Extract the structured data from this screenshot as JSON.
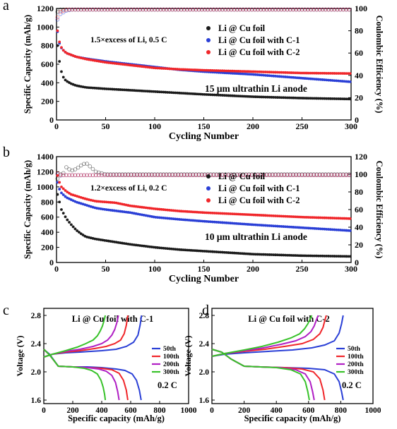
{
  "chart_data": [
    {
      "panel": "a",
      "type": "scatter",
      "xlabel": "Cycling Number",
      "ylabel": "Specific Capacity (mAh/g)",
      "y2label": "Coulombic Efficiency (%)",
      "xlim": [
        0,
        300
      ],
      "ylim": [
        0,
        1200
      ],
      "y2lim": [
        0,
        100
      ],
      "xticks": [
        "0",
        "50",
        "100",
        "150",
        "200",
        "250",
        "300"
      ],
      "yticks": [
        "0",
        "200",
        "400",
        "600",
        "800",
        "1000",
        "1200"
      ],
      "y2ticks": [
        "0",
        "20",
        "40",
        "60",
        "80",
        "100"
      ],
      "annotation": "1.5×excess of Li, 0.5 C",
      "note": "15 μm ultrathin Li anode",
      "series": [
        {
          "name": "Li @ Cu foil",
          "color": "#1a1a1a",
          "x": [
            1,
            2,
            4,
            6,
            8,
            10,
            15,
            20,
            30,
            50,
            75,
            100,
            125,
            150,
            200,
            250,
            300
          ],
          "y": [
            800,
            700,
            560,
            480,
            440,
            420,
            390,
            370,
            350,
            335,
            320,
            305,
            290,
            275,
            250,
            235,
            225
          ],
          "ce": [
            97,
            99,
            99,
            99,
            99,
            99,
            99,
            99,
            99,
            99,
            99,
            99,
            99,
            99,
            99,
            99,
            99
          ]
        },
        {
          "name": "Li @ Cu foil with C-1",
          "color": "#2a3fd6",
          "x": [
            1,
            2,
            4,
            6,
            8,
            10,
            15,
            20,
            30,
            50,
            75,
            100,
            125,
            150,
            200,
            250,
            300
          ],
          "y": [
            950,
            860,
            790,
            760,
            740,
            720,
            700,
            680,
            660,
            630,
            600,
            570,
            540,
            520,
            490,
            450,
            410
          ],
          "ce": [
            90,
            93,
            95,
            96,
            97,
            98,
            99,
            99,
            99,
            99,
            99,
            99,
            99,
            99,
            99,
            99,
            99
          ]
        },
        {
          "name": "Li @ Cu foil with C-2",
          "color": "#f0262a",
          "x": [
            1,
            2,
            4,
            6,
            8,
            10,
            15,
            20,
            30,
            50,
            75,
            100,
            125,
            150,
            200,
            250,
            300
          ],
          "y": [
            960,
            880,
            800,
            760,
            740,
            720,
            700,
            680,
            655,
            620,
            590,
            560,
            545,
            535,
            520,
            505,
            500
          ],
          "ce": [
            92,
            95,
            97,
            98,
            98,
            99,
            99,
            99,
            99,
            99,
            99,
            99,
            99,
            99,
            99,
            99,
            99
          ]
        }
      ]
    },
    {
      "panel": "b",
      "type": "scatter",
      "xlabel": "Cycling Number",
      "ylabel": "Specific Capacity (mAh/g)",
      "y2label": "Coulombic Efficiency (%)",
      "xlim": [
        0,
        300
      ],
      "ylim": [
        0,
        1400
      ],
      "y2lim": [
        0,
        120
      ],
      "xticks": [
        "0",
        "50",
        "100",
        "150",
        "200",
        "250",
        "300"
      ],
      "yticks": [
        "0",
        "200",
        "400",
        "600",
        "800",
        "1000",
        "1200",
        "1400"
      ],
      "y2ticks": [
        "0",
        "20",
        "40",
        "60",
        "80",
        "100",
        "120"
      ],
      "annotation": "1.2×excess of Li, 0.2 C",
      "note": "10 μm ultrathin Li anode",
      "series": [
        {
          "name": "Li @ Cu foil",
          "color": "#1a1a1a",
          "x": [
            1,
            3,
            5,
            10,
            15,
            20,
            25,
            30,
            40,
            50,
            75,
            100,
            125,
            150,
            200,
            250,
            300
          ],
          "y": [
            900,
            800,
            700,
            580,
            500,
            430,
            380,
            340,
            310,
            290,
            240,
            200,
            170,
            150,
            110,
            90,
            80
          ],
          "ce": [
            95,
            103,
            97,
            108,
            104,
            106,
            110,
            113,
            103,
            100,
            100,
            100,
            100,
            100,
            100,
            100,
            100
          ]
        },
        {
          "name": "Li @ Cu foil with C-1",
          "color": "#2a3fd6",
          "x": [
            1,
            3,
            5,
            10,
            15,
            20,
            30,
            40,
            50,
            75,
            100,
            125,
            150,
            200,
            250,
            300
          ],
          "y": [
            1060,
            970,
            920,
            860,
            830,
            800,
            760,
            720,
            700,
            660,
            600,
            570,
            545,
            500,
            460,
            420
          ],
          "ce": [
            100,
            98,
            99,
            99,
            99,
            99,
            99,
            99,
            99,
            99,
            99,
            99,
            99,
            99,
            99,
            99
          ]
        },
        {
          "name": "Li @ Cu foil with C-2",
          "color": "#f0262a",
          "x": [
            1,
            3,
            5,
            10,
            15,
            20,
            30,
            40,
            50,
            60,
            75,
            100,
            125,
            150,
            200,
            250,
            300
          ],
          "y": [
            1150,
            1060,
            1000,
            940,
            900,
            880,
            840,
            810,
            800,
            790,
            750,
            710,
            680,
            660,
            630,
            600,
            580
          ],
          "ce": [
            101,
            99,
            99,
            99,
            99,
            99,
            99,
            99,
            99,
            99,
            99,
            99,
            99,
            99,
            99,
            99,
            99
          ]
        }
      ]
    },
    {
      "panel": "c",
      "type": "line",
      "title": "Li @ Cu foil with C-1",
      "xlabel": "Specific capacity (mAh/g)",
      "ylabel": "Voltage (V)",
      "xlim": [
        0,
        1000
      ],
      "ylim": [
        1.55,
        2.9
      ],
      "xticks": [
        "0",
        "200",
        "400",
        "600",
        "800",
        "1000"
      ],
      "yticks": [
        "1.6",
        "2.0",
        "2.4",
        "2.8"
      ],
      "annotation": "0.2 C",
      "series": [
        {
          "name": "50th",
          "color": "#2a3fd6",
          "discharge": {
            "x": [
              0,
              40,
              100,
              200,
              300,
              400,
              500,
              560,
              610,
              640,
              660,
              672
            ],
            "y": [
              2.32,
              2.25,
              2.08,
              2.07,
              2.07,
              2.06,
              2.04,
              2.02,
              1.97,
              1.88,
              1.74,
              1.6
            ]
          },
          "charge": {
            "x": [
              0,
              60,
              150,
              250,
              400,
              500,
              570,
              620,
              650,
              665,
              675
            ],
            "y": [
              2.21,
              2.25,
              2.27,
              2.28,
              2.3,
              2.32,
              2.36,
              2.42,
              2.52,
              2.66,
              2.8
            ]
          }
        },
        {
          "name": "100th",
          "color": "#f0262a",
          "discharge": {
            "x": [
              0,
              40,
              100,
              200,
              300,
              400,
              470,
              520,
              550,
              570,
              580
            ],
            "y": [
              2.32,
              2.24,
              2.08,
              2.07,
              2.06,
              2.05,
              2.03,
              1.98,
              1.88,
              1.74,
              1.6
            ]
          },
          "charge": {
            "x": [
              0,
              60,
              150,
              250,
              350,
              430,
              490,
              530,
              555,
              570,
              580
            ],
            "y": [
              2.21,
              2.25,
              2.28,
              2.3,
              2.33,
              2.36,
              2.4,
              2.45,
              2.54,
              2.66,
              2.8
            ]
          }
        },
        {
          "name": "200th",
          "color": "#b01fc4",
          "discharge": {
            "x": [
              0,
              40,
              100,
              200,
              300,
              380,
              430,
              470,
              495,
              510,
              520
            ],
            "y": [
              2.32,
              2.24,
              2.08,
              2.07,
              2.06,
              2.04,
              2.01,
              1.95,
              1.85,
              1.72,
              1.6
            ]
          },
          "charge": {
            "x": [
              0,
              60,
              150,
              250,
              340,
              400,
              440,
              470,
              490,
              505,
              515
            ],
            "y": [
              2.21,
              2.25,
              2.29,
              2.32,
              2.36,
              2.4,
              2.45,
              2.52,
              2.6,
              2.7,
              2.8
            ]
          }
        },
        {
          "name": "300th",
          "color": "#38c22a",
          "discharge": {
            "x": [
              0,
              40,
              100,
              200,
              280,
              330,
              370,
              395,
              410,
              420,
              425
            ],
            "y": [
              2.32,
              2.24,
              2.08,
              2.07,
              2.05,
              2.02,
              1.97,
              1.88,
              1.78,
              1.68,
              1.6
            ]
          },
          "charge": {
            "x": [
              0,
              60,
              150,
              230,
              290,
              340,
              370,
              390,
              405,
              415,
              425
            ],
            "y": [
              2.21,
              2.25,
              2.3,
              2.35,
              2.4,
              2.45,
              2.51,
              2.58,
              2.65,
              2.72,
              2.8
            ]
          }
        }
      ]
    },
    {
      "panel": "d",
      "type": "line",
      "title": "Li @ Cu foil with C-2",
      "xlabel": "Specific capacity (mAh/g)",
      "ylabel": "Voltage (V)",
      "xlim": [
        0,
        1000
      ],
      "ylim": [
        1.55,
        2.9
      ],
      "xticks": [
        "0",
        "200",
        "400",
        "600",
        "800",
        "1000"
      ],
      "yticks": [
        "1.6",
        "2.0",
        "2.4",
        "2.8"
      ],
      "annotation": "0.2 C",
      "series": [
        {
          "name": "50th",
          "color": "#2a3fd6",
          "discharge": {
            "x": [
              0,
              60,
              120,
              200,
              300,
              450,
              600,
              700,
              760,
              790,
              805,
              815
            ],
            "y": [
              2.32,
              2.28,
              2.18,
              2.08,
              2.07,
              2.06,
              2.05,
              2.03,
              1.97,
              1.86,
              1.72,
              1.6
            ]
          },
          "charge": {
            "x": [
              0,
              80,
              200,
              350,
              500,
              620,
              700,
              760,
              790,
              805,
              815
            ],
            "y": [
              2.22,
              2.25,
              2.27,
              2.29,
              2.31,
              2.34,
              2.38,
              2.44,
              2.55,
              2.68,
              2.8
            ]
          }
        },
        {
          "name": "100th",
          "color": "#f0262a",
          "discharge": {
            "x": [
              0,
              60,
              120,
              200,
              300,
              450,
              560,
              630,
              670,
              690,
              700
            ],
            "y": [
              2.32,
              2.28,
              2.18,
              2.08,
              2.07,
              2.06,
              2.04,
              2.0,
              1.9,
              1.74,
              1.6
            ]
          },
          "charge": {
            "x": [
              0,
              80,
              200,
              330,
              450,
              560,
              630,
              670,
              690,
              700,
              710
            ],
            "y": [
              2.22,
              2.26,
              2.29,
              2.32,
              2.36,
              2.4,
              2.46,
              2.54,
              2.63,
              2.72,
              2.8
            ]
          }
        },
        {
          "name": "200th",
          "color": "#b01fc4",
          "discharge": {
            "x": [
              0,
              60,
              120,
              200,
              300,
              420,
              520,
              580,
              610,
              625,
              635
            ],
            "y": [
              2.32,
              2.28,
              2.18,
              2.08,
              2.07,
              2.06,
              2.03,
              1.97,
              1.86,
              1.72,
              1.6
            ]
          },
          "charge": {
            "x": [
              0,
              80,
              200,
              320,
              430,
              520,
              580,
              615,
              635,
              648,
              660
            ],
            "y": [
              2.22,
              2.26,
              2.3,
              2.34,
              2.39,
              2.44,
              2.5,
              2.57,
              2.65,
              2.73,
              2.8
            ]
          }
        },
        {
          "name": "300th",
          "color": "#38c22a",
          "discharge": {
            "x": [
              0,
              60,
              120,
              200,
              300,
              400,
              490,
              550,
              580,
              595,
              605
            ],
            "y": [
              2.32,
              2.28,
              2.18,
              2.08,
              2.07,
              2.06,
              2.03,
              1.97,
              1.86,
              1.72,
              1.6
            ]
          },
          "charge": {
            "x": [
              0,
              80,
              200,
              310,
              410,
              490,
              545,
              575,
              595,
              608,
              620
            ],
            "y": [
              2.22,
              2.26,
              2.31,
              2.36,
              2.42,
              2.48,
              2.54,
              2.61,
              2.68,
              2.74,
              2.8
            ]
          }
        }
      ]
    }
  ],
  "panel_labels": [
    "a",
    "b",
    "c",
    "d"
  ]
}
